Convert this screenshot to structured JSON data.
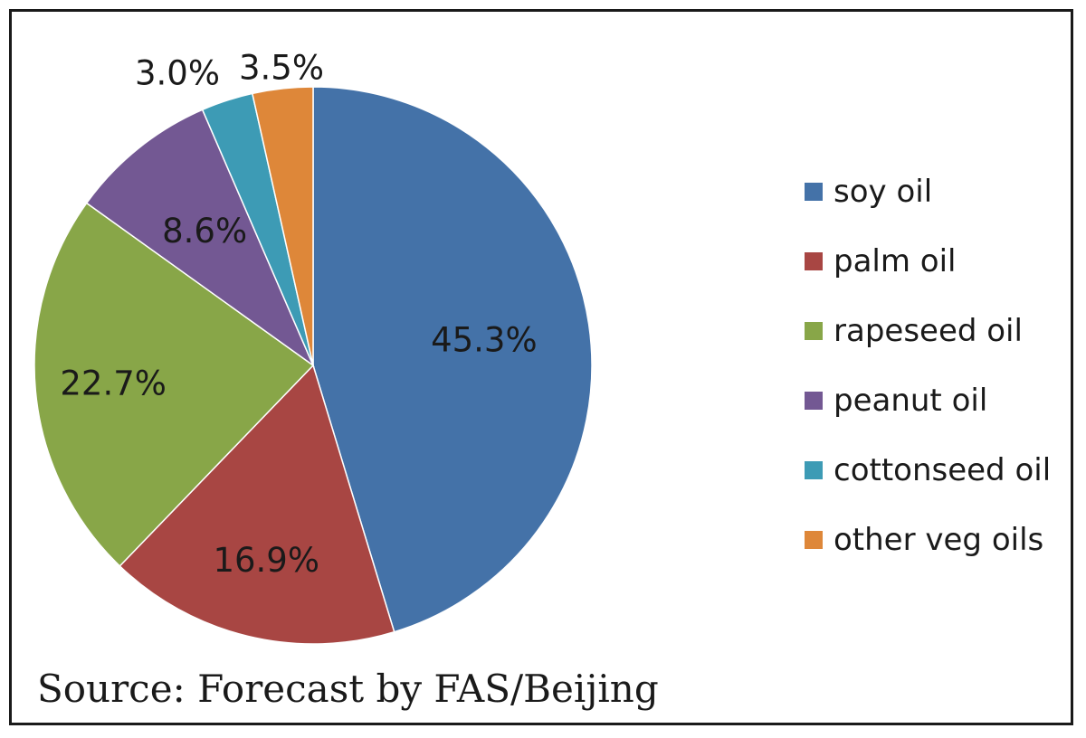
{
  "chart_data": {
    "type": "pie",
    "start_angle_deg": 0,
    "direction": "clockwise",
    "slices": [
      {
        "label": "soy oil",
        "value": 45.3,
        "display": "45.3%",
        "color": "#4472A8"
      },
      {
        "label": "palm oil",
        "value": 16.9,
        "display": "16.9%",
        "color": "#A84643"
      },
      {
        "label": "rapeseed oil",
        "value": 22.7,
        "display": "22.7%",
        "color": "#88A648"
      },
      {
        "label": "peanut oil",
        "value": 8.6,
        "display": "8.6%",
        "color": "#735893"
      },
      {
        "label": "cottonseed oil",
        "value": 3.0,
        "display": "3.0%",
        "color": "#3D9BB5"
      },
      {
        "label": "other veg oils",
        "value": 3.5,
        "display": "3.5%",
        "color": "#DE8739"
      }
    ],
    "legend_position": "right",
    "source": "Source: Forecast by FAS/Beijing"
  }
}
